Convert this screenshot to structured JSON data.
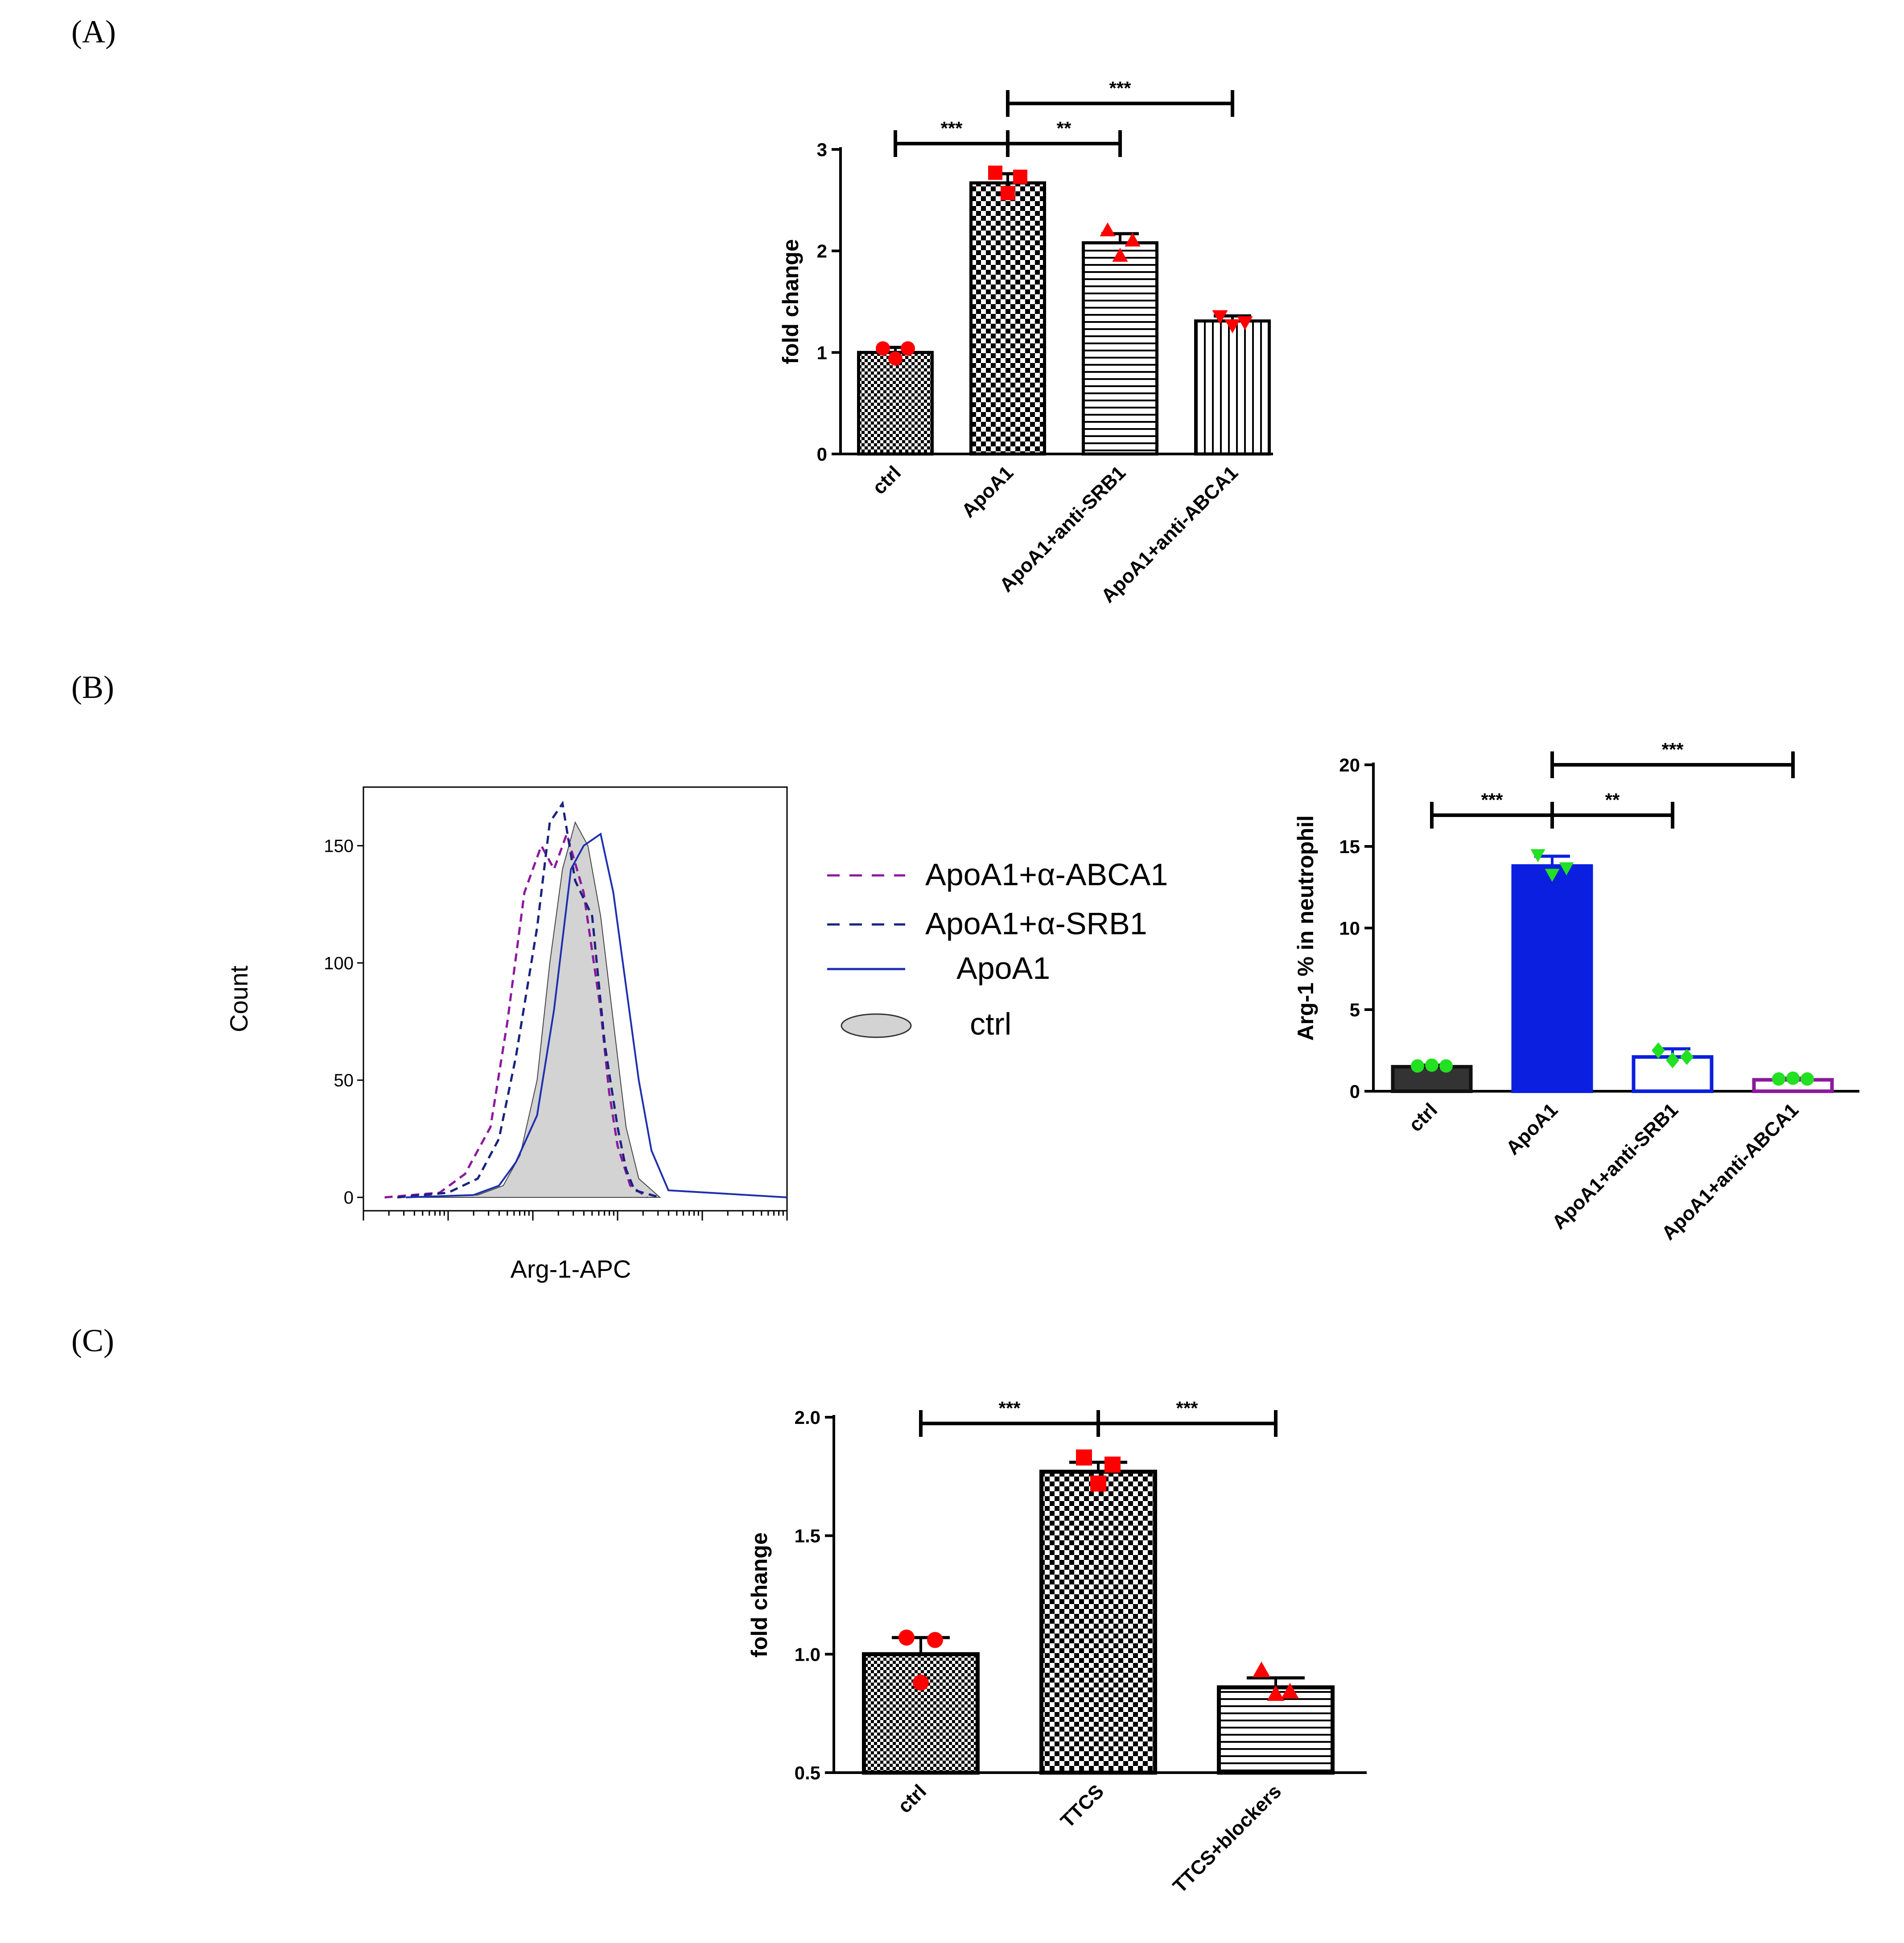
{
  "panel_labels": [
    "(A)",
    "(B)",
    "(C)"
  ],
  "chart_data": [
    {
      "id": "A",
      "type": "bar",
      "ylabel": "fold change",
      "ylim": [
        0,
        3
      ],
      "yticks": [
        "0",
        "1",
        "2",
        "3"
      ],
      "categories": [
        "ctrl",
        "ApoA1",
        "ApoA1+anti-SRB1",
        "ApoA1+anti-ABCA1"
      ],
      "values": [
        1.0,
        2.67,
        2.08,
        1.31
      ],
      "errors": [
        0.05,
        0.09,
        0.09,
        0.05
      ],
      "points": [
        [
          1.04,
          0.94,
          1.04
        ],
        [
          2.77,
          2.57,
          2.73
        ],
        [
          2.2,
          1.95,
          2.1
        ],
        [
          1.36,
          1.27,
          1.3
        ]
      ],
      "point_color": "#ff0000",
      "point_markers": [
        "circle",
        "square",
        "triangle-up",
        "triangle-down"
      ],
      "bar_fills": [
        "fine-check",
        "check",
        "hlines",
        "vlines"
      ],
      "comparisons": [
        {
          "from": 0,
          "to": 1,
          "label": "***"
        },
        {
          "from": 1,
          "to": 2,
          "label": "**"
        },
        {
          "from": 1,
          "to": 3,
          "label": "***"
        }
      ]
    },
    {
      "id": "B-histogram",
      "type": "line",
      "ylabel": "Count",
      "xlabel": "Arg-1-APC",
      "ylim": [
        0,
        175
      ],
      "yticks": [
        "0",
        "50",
        "100",
        "150"
      ],
      "x_scale": "log",
      "legend": [
        "ApoA1+α-ABCA1",
        "ApoA1+α-SRB1",
        "ApoA1",
        "ctrl"
      ],
      "legend_placement": "right",
      "series": [
        {
          "name": "ApoA1+α-ABCA1",
          "style": "dashed",
          "color": "#8b1a9c",
          "x": [
            0.05,
            0.18,
            0.24,
            0.3,
            0.34,
            0.38,
            0.42,
            0.45,
            0.48,
            0.52,
            0.56,
            0.58,
            0.6,
            0.63,
            0.67
          ],
          "y": [
            0,
            2,
            10,
            30,
            75,
            130,
            150,
            140,
            155,
            130,
            80,
            45,
            22,
            5,
            0
          ]
        },
        {
          "name": "ApoA1+α-SRB1",
          "style": "dashed",
          "color": "#1a237e",
          "x": [
            0.08,
            0.2,
            0.27,
            0.32,
            0.36,
            0.41,
            0.44,
            0.47,
            0.5,
            0.54,
            0.57,
            0.6,
            0.62,
            0.64,
            0.7
          ],
          "y": [
            0,
            2,
            8,
            25,
            60,
            115,
            160,
            168,
            135,
            120,
            65,
            30,
            12,
            3,
            0
          ]
        },
        {
          "name": "ApoA1",
          "style": "solid",
          "color": "#1f2fb0",
          "x": [
            0.1,
            0.26,
            0.32,
            0.36,
            0.41,
            0.45,
            0.49,
            0.52,
            0.56,
            0.59,
            0.62,
            0.65,
            0.68,
            0.72,
            1.0
          ],
          "y": [
            0,
            1,
            5,
            15,
            35,
            80,
            140,
            150,
            155,
            130,
            90,
            50,
            20,
            3,
            0
          ]
        },
        {
          "name": "ctrl",
          "style": "filled",
          "color": "#d3d3d3",
          "x": [
            0.1,
            0.27,
            0.33,
            0.37,
            0.41,
            0.44,
            0.47,
            0.5,
            0.53,
            0.56,
            0.59,
            0.62,
            0.65,
            0.7
          ],
          "y": [
            0,
            1,
            5,
            18,
            50,
            100,
            140,
            160,
            150,
            120,
            75,
            30,
            8,
            0
          ]
        }
      ]
    },
    {
      "id": "B-bar",
      "type": "bar",
      "ylabel": "Arg-1 % in neutrophil",
      "ylim": [
        0,
        20
      ],
      "yticks": [
        "0",
        "5",
        "10",
        "15",
        "20"
      ],
      "categories": [
        "ctrl",
        "ApoA1",
        "ApoA1+anti-SRB1",
        "ApoA1+anti-ABCA1"
      ],
      "values": [
        1.5,
        13.8,
        2.1,
        0.7
      ],
      "errors": [
        0.1,
        0.6,
        0.5,
        0.1
      ],
      "points": [
        [
          1.55,
          1.6,
          1.55
        ],
        [
          14.5,
          13.3,
          13.7
        ],
        [
          2.5,
          1.9,
          2.1
        ],
        [
          0.75,
          0.8,
          0.75
        ]
      ],
      "point_color": "#22e022",
      "point_markers": [
        "circle",
        "triangle-down",
        "diamond",
        "circle"
      ],
      "bar_fills": [
        "#333333",
        "#0b1fe0",
        "#ffffff",
        "#ffffff"
      ],
      "bar_edges": [
        "#111111",
        "#0b1fe0",
        "#0b1fe0",
        "#8b1a9c"
      ],
      "comparisons": [
        {
          "from": 0,
          "to": 1,
          "label": "***"
        },
        {
          "from": 1,
          "to": 2,
          "label": "**"
        },
        {
          "from": 1,
          "to": 3,
          "label": "***"
        }
      ]
    },
    {
      "id": "C",
      "type": "bar",
      "ylabel": "fold change",
      "ylim": [
        0.5,
        2.0
      ],
      "yticks": [
        "0.5",
        "1.0",
        "1.5",
        "2.0"
      ],
      "categories": [
        "ctrl",
        "TTCS",
        "TTCS+blockers"
      ],
      "values": [
        1.0,
        1.77,
        0.86
      ],
      "errors": [
        0.07,
        0.04,
        0.04
      ],
      "points": [
        [
          1.07,
          0.88,
          1.06
        ],
        [
          1.83,
          1.72,
          1.8
        ],
        [
          0.93,
          0.83,
          0.84
        ]
      ],
      "point_color": "#ff0000",
      "point_markers": [
        "circle",
        "square",
        "triangle-up"
      ],
      "bar_fills": [
        "fine-check",
        "check",
        "hlines"
      ],
      "comparisons": [
        {
          "from": 0,
          "to": 1,
          "label": "***"
        },
        {
          "from": 1,
          "to": 2,
          "label": "***"
        }
      ]
    }
  ]
}
